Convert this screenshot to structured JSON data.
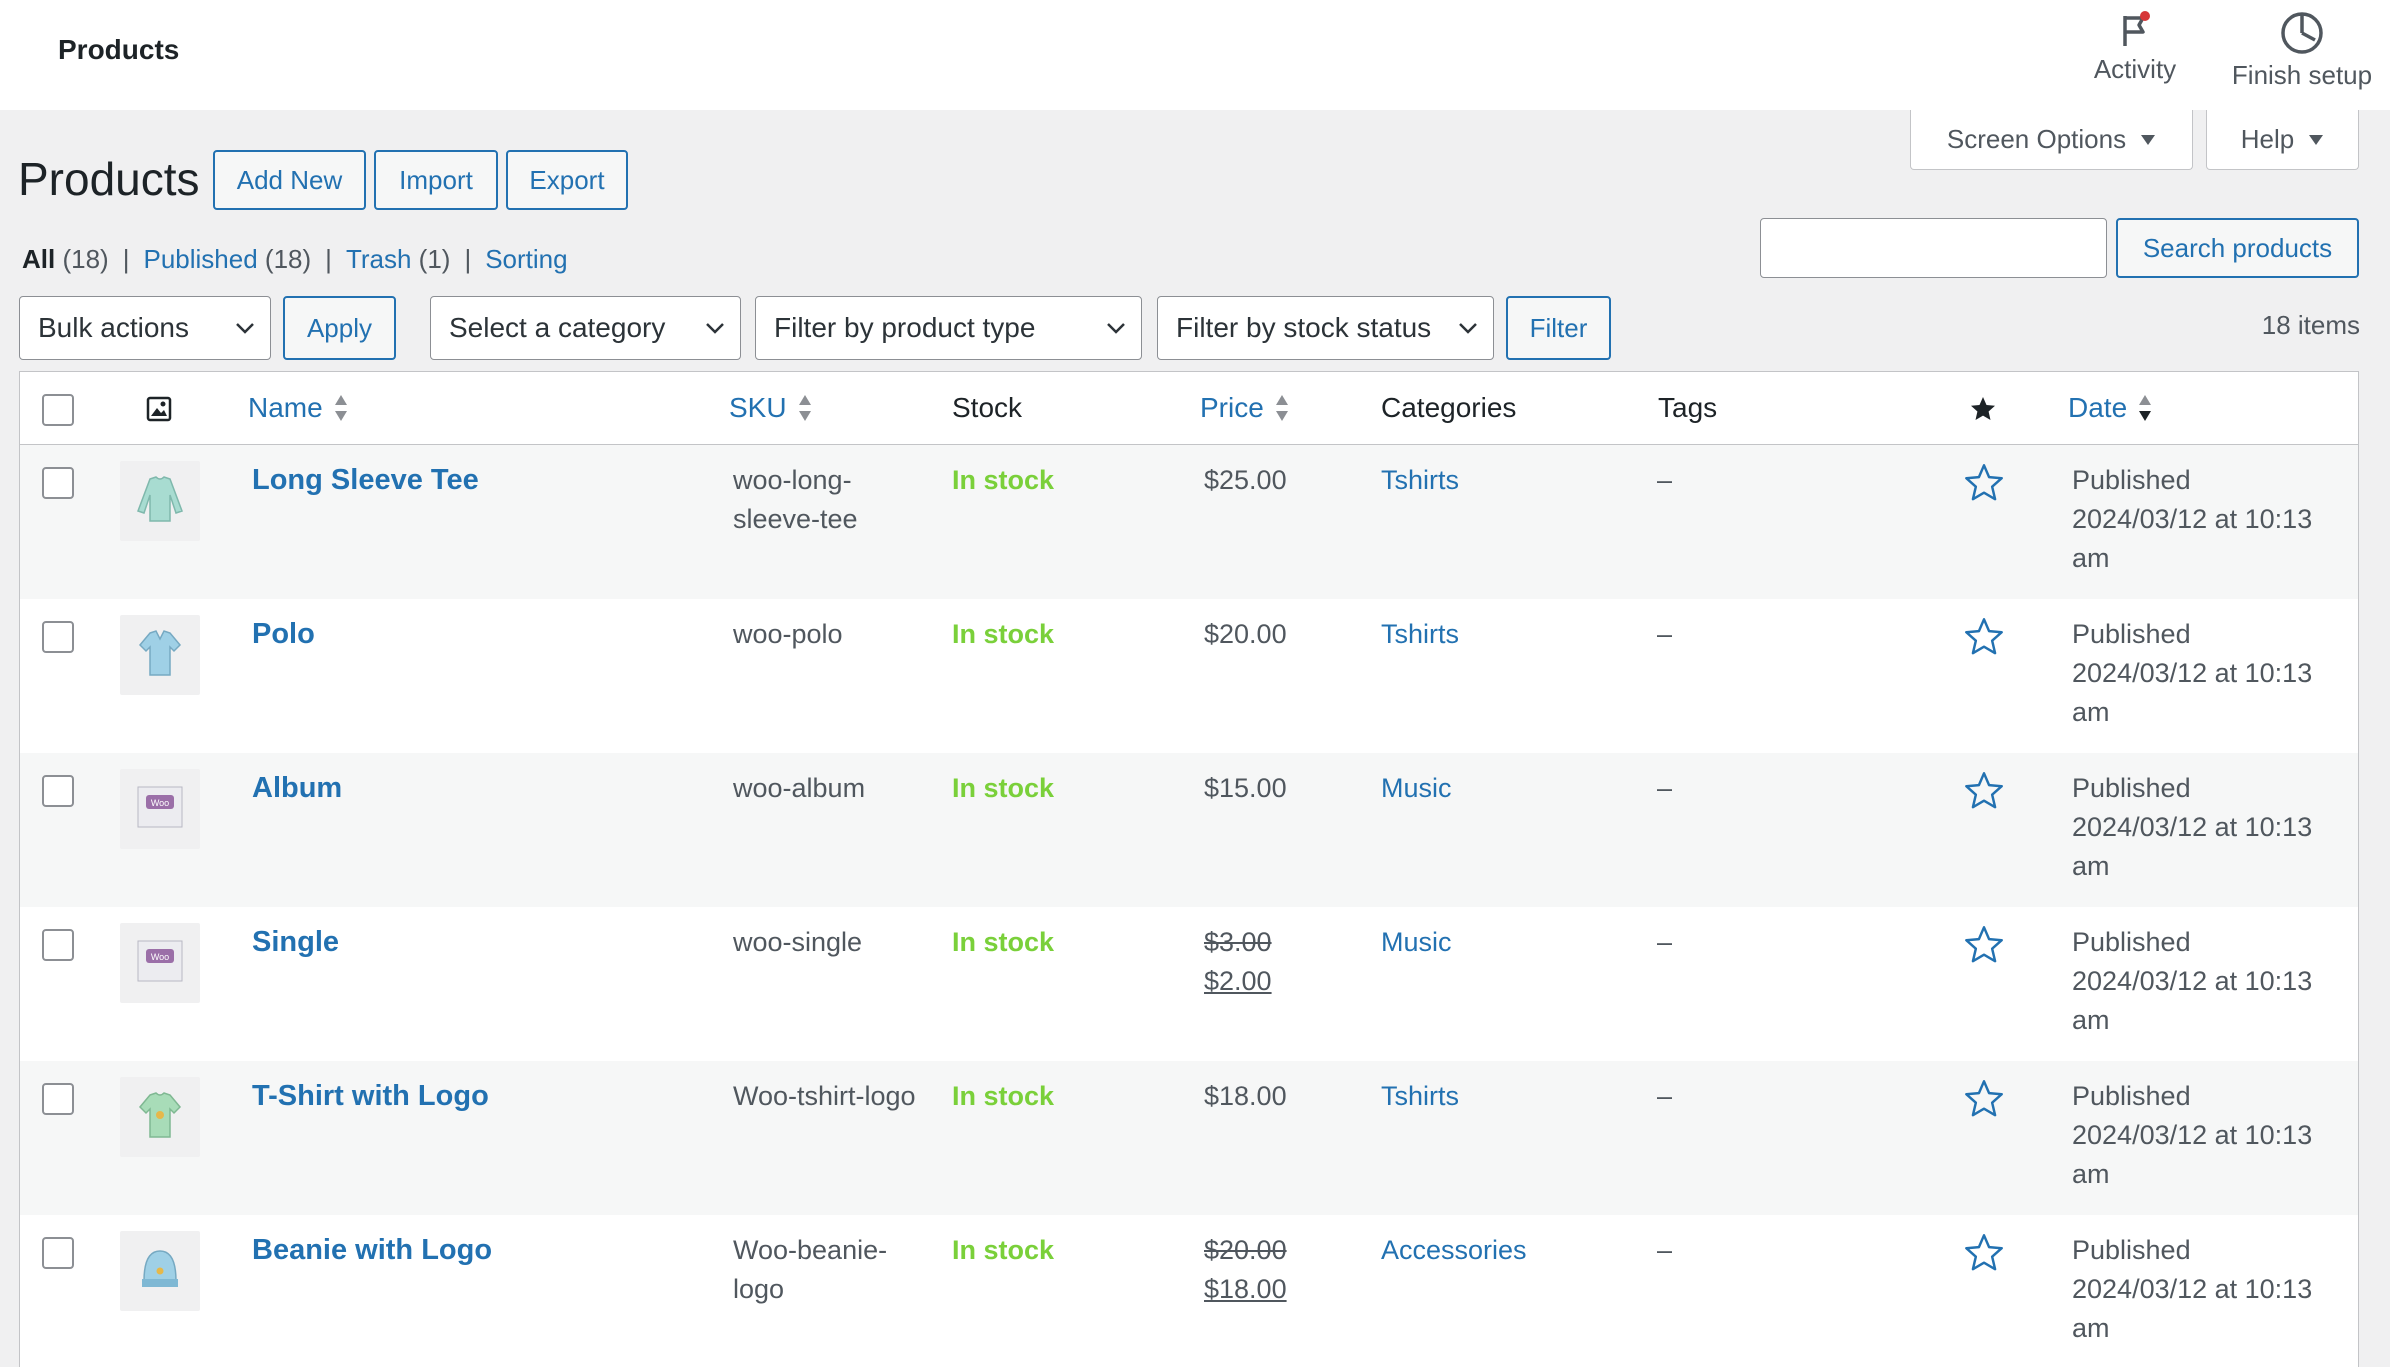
{
  "topbar": {
    "title": "Products",
    "activity_label": "Activity",
    "finish_setup_label": "Finish setup"
  },
  "tabs": {
    "screen_options_label": "Screen Options",
    "help_label": "Help"
  },
  "header": {
    "heading": "Products",
    "add_new_label": "Add New",
    "import_label": "Import",
    "export_label": "Export"
  },
  "views": [
    {
      "label": "All",
      "count": "(18)"
    },
    {
      "label": "Published",
      "count": "(18)"
    },
    {
      "label": "Trash",
      "count": "(1)"
    },
    {
      "label": "Sorting",
      "count": ""
    }
  ],
  "search": {
    "value": "",
    "button_label": "Search products"
  },
  "filters": {
    "bulk_actions": "Bulk actions",
    "apply_label": "Apply",
    "category": "Select a category",
    "product_type": "Filter by product type",
    "stock_status": "Filter by stock status",
    "filter_label": "Filter",
    "items_count": "18 items"
  },
  "columns": {
    "name": "Name",
    "sku": "SKU",
    "stock": "Stock",
    "price": "Price",
    "categories": "Categories",
    "tags": "Tags",
    "date": "Date"
  },
  "products": [
    {
      "name": "Long Sleeve Tee",
      "sku": "woo-long-sleeve-tee",
      "stock": "In stock",
      "price": "$25.00",
      "price_old": "",
      "price_new": "",
      "category": "Tshirts",
      "tags": "–",
      "date_status": "Published",
      "date_value": "2024/03/12 at 10:13 am",
      "icon": "long-sleeve-tee-icon"
    },
    {
      "name": "Polo",
      "sku": "woo-polo",
      "stock": "In stock",
      "price": "$20.00",
      "price_old": "",
      "price_new": "",
      "category": "Tshirts",
      "tags": "–",
      "date_status": "Published",
      "date_value": "2024/03/12 at 10:13 am",
      "icon": "polo-icon"
    },
    {
      "name": "Album",
      "sku": "woo-album",
      "stock": "In stock",
      "price": "$15.00",
      "price_old": "",
      "price_new": "",
      "category": "Music",
      "tags": "–",
      "date_status": "Published",
      "date_value": "2024/03/12 at 10:13 am",
      "icon": "album-icon"
    },
    {
      "name": "Single",
      "sku": "woo-single",
      "stock": "In stock",
      "price": "",
      "price_old": "$3.00",
      "price_new": "$2.00",
      "category": "Music",
      "tags": "–",
      "date_status": "Published",
      "date_value": "2024/03/12 at 10:13 am",
      "icon": "single-icon"
    },
    {
      "name": "T-Shirt with Logo",
      "sku": "Woo-tshirt-logo",
      "stock": "In stock",
      "price": "$18.00",
      "price_old": "",
      "price_new": "",
      "category": "Tshirts",
      "tags": "–",
      "date_status": "Published",
      "date_value": "2024/03/12 at 10:13 am",
      "icon": "tshirt-icon"
    },
    {
      "name": "Beanie with Logo",
      "sku": "Woo-beanie-logo",
      "stock": "In stock",
      "price": "",
      "price_old": "$20.00",
      "price_new": "$18.00",
      "category": "Accessories",
      "tags": "–",
      "date_status": "Published",
      "date_value": "2024/03/12 at 10:13 am",
      "icon": "beanie-icon"
    }
  ],
  "colors": {
    "link": "#2271b1",
    "in_stock": "#7ad03a",
    "notification_dot": "#d63638"
  }
}
